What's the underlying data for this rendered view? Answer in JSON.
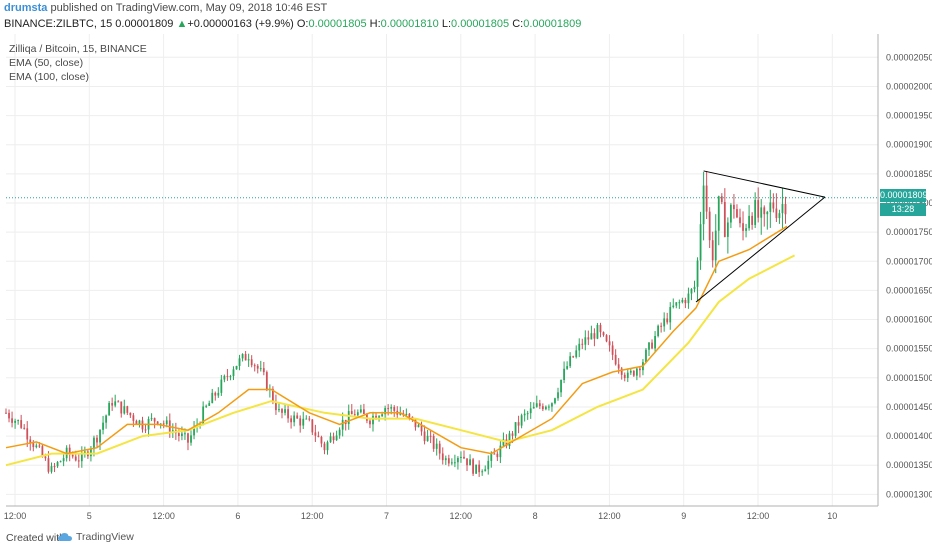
{
  "header": {
    "author": "drumsta",
    "published": "published on TradingView.com, May 09, 2018 10:46 EST",
    "symbol": "BINANCE:ZILBTC, 15",
    "last": "0.00001809",
    "change_arrow": "▲",
    "change": "+0.00000163 (+9.9%)",
    "o_label": "O:",
    "o": "0.00001805",
    "h_label": "H:",
    "h": "0.00001810",
    "l_label": "L:",
    "l": "0.00001805",
    "c_label": "C:",
    "c": "0.00001809"
  },
  "legend": {
    "title": "Zilliqa / Bitcoin, 15, BINANCE",
    "ema50": "EMA (50, close)",
    "ema100": "EMA (100, close)"
  },
  "price_scale": {
    "current_price": "0.00001809",
    "countdown": "13:28"
  },
  "footer": {
    "created": "Created with",
    "brand": "TradingView"
  },
  "colors": {
    "up": "#26a65b",
    "down": "#d0505a",
    "ema50": "#f39c12",
    "ema100": "#f4e542",
    "price_line": "#26a69a",
    "triangle": "#000000"
  },
  "chart_data": {
    "type": "line",
    "y_ticks": [
      "0.00001300",
      "0.00001350",
      "0.00001400",
      "0.00001450",
      "0.00001500",
      "0.00001550",
      "0.00001600",
      "0.00001650",
      "0.00001700",
      "0.00001750",
      "0.00001800",
      "0.00001850",
      "0.00001900",
      "0.00001950",
      "0.00002000",
      "0.00002050"
    ],
    "x_ticks": [
      "12:00",
      "5",
      "12:00",
      "6",
      "12:00",
      "7",
      "12:00",
      "8",
      "12:00",
      "9",
      "12:00",
      "10"
    ],
    "ylim": [
      1.28e-05,
      2.09e-05
    ],
    "close_path": [
      {
        "t": 0,
        "v": 1.44e-05
      },
      {
        "t": 2,
        "v": 1.42e-05
      },
      {
        "t": 4,
        "v": 1.38e-05
      },
      {
        "t": 6,
        "v": 1.34e-05
      },
      {
        "t": 8,
        "v": 1.37e-05
      },
      {
        "t": 10,
        "v": 1.36e-05
      },
      {
        "t": 12,
        "v": 1.4e-05
      },
      {
        "t": 14,
        "v": 1.46e-05
      },
      {
        "t": 16,
        "v": 1.44e-05
      },
      {
        "t": 18,
        "v": 1.42e-05
      },
      {
        "t": 20,
        "v": 1.43e-05
      },
      {
        "t": 22,
        "v": 1.41e-05
      },
      {
        "t": 24,
        "v": 1.39e-05
      },
      {
        "t": 26,
        "v": 1.44e-05
      },
      {
        "t": 28,
        "v": 1.48e-05
      },
      {
        "t": 30,
        "v": 1.52e-05
      },
      {
        "t": 32,
        "v": 1.54e-05
      },
      {
        "t": 34,
        "v": 1.5e-05
      },
      {
        "t": 36,
        "v": 1.44e-05
      },
      {
        "t": 38,
        "v": 1.43e-05
      },
      {
        "t": 40,
        "v": 1.42e-05
      },
      {
        "t": 42,
        "v": 1.38e-05
      },
      {
        "t": 44,
        "v": 1.42e-05
      },
      {
        "t": 46,
        "v": 1.44e-05
      },
      {
        "t": 48,
        "v": 1.43e-05
      },
      {
        "t": 50,
        "v": 1.45e-05
      },
      {
        "t": 52,
        "v": 1.44e-05
      },
      {
        "t": 54,
        "v": 1.42e-05
      },
      {
        "t": 56,
        "v": 1.39e-05
      },
      {
        "t": 58,
        "v": 1.36e-05
      },
      {
        "t": 60,
        "v": 1.37e-05
      },
      {
        "t": 62,
        "v": 1.34e-05
      },
      {
        "t": 64,
        "v": 1.36e-05
      },
      {
        "t": 66,
        "v": 1.39e-05
      },
      {
        "t": 68,
        "v": 1.43e-05
      },
      {
        "t": 70,
        "v": 1.45e-05
      },
      {
        "t": 72,
        "v": 1.46e-05
      },
      {
        "t": 74,
        "v": 1.52e-05
      },
      {
        "t": 76,
        "v": 1.56e-05
      },
      {
        "t": 78,
        "v": 1.58e-05
      },
      {
        "t": 80,
        "v": 1.54e-05
      },
      {
        "t": 82,
        "v": 1.5e-05
      },
      {
        "t": 84,
        "v": 1.53e-05
      },
      {
        "t": 86,
        "v": 1.58e-05
      },
      {
        "t": 88,
        "v": 1.62e-05
      },
      {
        "t": 90,
        "v": 1.64e-05
      },
      {
        "t": 91,
        "v": 1.66e-05
      },
      {
        "t": 92,
        "v": 1.85e-05
      },
      {
        "t": 93,
        "v": 1.7e-05
      },
      {
        "t": 94,
        "v": 1.79e-05
      },
      {
        "t": 95,
        "v": 1.76e-05
      },
      {
        "t": 96,
        "v": 1.8e-05
      },
      {
        "t": 97,
        "v": 1.74e-05
      },
      {
        "t": 98,
        "v": 1.79e-05
      },
      {
        "t": 99,
        "v": 1.78e-05
      },
      {
        "t": 100,
        "v": 1.76e-05
      },
      {
        "t": 101,
        "v": 1.8e-05
      },
      {
        "t": 102,
        "v": 1.79e-05
      },
      {
        "t": 103,
        "v": 1.809e-05
      }
    ],
    "ema50": [
      {
        "t": 0,
        "v": 1.38e-05
      },
      {
        "t": 4,
        "v": 1.39e-05
      },
      {
        "t": 8,
        "v": 1.37e-05
      },
      {
        "t": 12,
        "v": 1.38e-05
      },
      {
        "t": 16,
        "v": 1.42e-05
      },
      {
        "t": 20,
        "v": 1.42e-05
      },
      {
        "t": 24,
        "v": 1.41e-05
      },
      {
        "t": 28,
        "v": 1.44e-05
      },
      {
        "t": 32,
        "v": 1.48e-05
      },
      {
        "t": 35,
        "v": 1.48e-05
      },
      {
        "t": 40,
        "v": 1.44e-05
      },
      {
        "t": 44,
        "v": 1.42e-05
      },
      {
        "t": 48,
        "v": 1.44e-05
      },
      {
        "t": 52,
        "v": 1.44e-05
      },
      {
        "t": 56,
        "v": 1.41e-05
      },
      {
        "t": 60,
        "v": 1.38e-05
      },
      {
        "t": 64,
        "v": 1.37e-05
      },
      {
        "t": 68,
        "v": 1.4e-05
      },
      {
        "t": 72,
        "v": 1.43e-05
      },
      {
        "t": 76,
        "v": 1.49e-05
      },
      {
        "t": 80,
        "v": 1.51e-05
      },
      {
        "t": 84,
        "v": 1.52e-05
      },
      {
        "t": 88,
        "v": 1.58e-05
      },
      {
        "t": 91,
        "v": 1.62e-05
      },
      {
        "t": 94,
        "v": 1.7e-05
      },
      {
        "t": 98,
        "v": 1.72e-05
      },
      {
        "t": 103,
        "v": 1.76e-05
      }
    ],
    "ema100": [
      {
        "t": 0,
        "v": 1.35e-05
      },
      {
        "t": 6,
        "v": 1.37e-05
      },
      {
        "t": 12,
        "v": 1.37e-05
      },
      {
        "t": 18,
        "v": 1.4e-05
      },
      {
        "t": 24,
        "v": 1.41e-05
      },
      {
        "t": 30,
        "v": 1.44e-05
      },
      {
        "t": 35,
        "v": 1.46e-05
      },
      {
        "t": 42,
        "v": 1.44e-05
      },
      {
        "t": 48,
        "v": 1.43e-05
      },
      {
        "t": 54,
        "v": 1.43e-05
      },
      {
        "t": 60,
        "v": 1.41e-05
      },
      {
        "t": 66,
        "v": 1.39e-05
      },
      {
        "t": 72,
        "v": 1.41e-05
      },
      {
        "t": 78,
        "v": 1.45e-05
      },
      {
        "t": 84,
        "v": 1.48e-05
      },
      {
        "t": 90,
        "v": 1.56e-05
      },
      {
        "t": 94,
        "v": 1.63e-05
      },
      {
        "t": 98,
        "v": 1.67e-05
      },
      {
        "t": 104,
        "v": 1.71e-05
      }
    ],
    "triangle": {
      "apex": {
        "t": 108,
        "v": 1.81e-05
      },
      "upper_start": {
        "t": 92,
        "v": 1.855e-05
      },
      "lower_start": {
        "t": 91,
        "v": 1.63e-05
      }
    },
    "grid": true
  }
}
